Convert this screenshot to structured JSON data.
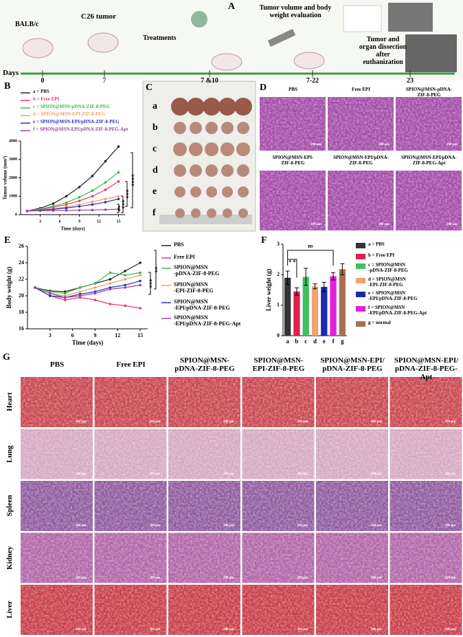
{
  "panel_a": {
    "letter": "A",
    "mouse_strain": "BALB/c",
    "tumor": "C26 tumor",
    "treatments": "Treatments",
    "evaluation": "Tumor volume and body weight evaluation",
    "dissection": "Tumor and organ dissection after euthanization",
    "timeline": {
      "label": "Days",
      "ticks": [
        "0",
        "7",
        "7 &10",
        "7-22",
        "23"
      ]
    }
  },
  "chart_data": [
    {
      "type": "line",
      "panel": "B",
      "xlabel": "Time (days)",
      "ylabel": "Tumor volume (mm³)",
      "x": [
        1,
        3,
        5,
        7,
        9,
        11,
        13,
        15
      ],
      "xlim": [
        0,
        16
      ],
      "ylim": [
        0,
        4000
      ],
      "xticks": [
        3,
        6,
        9,
        12,
        15
      ],
      "yticks": [
        0,
        1000,
        2000,
        3000,
        4000
      ],
      "series": [
        {
          "name": "a = PBS",
          "color": "#222222",
          "values": [
            200,
            350,
            600,
            1000,
            1500,
            2100,
            2900,
            3700
          ]
        },
        {
          "name": "b = Free EPI",
          "color": "#e8356a",
          "values": [
            200,
            280,
            400,
            550,
            750,
            1000,
            1350,
            1800
          ]
        },
        {
          "name": "c = SPION@MSN-pDNA-ZIF-8-PEG",
          "color": "#3cb84a",
          "values": [
            200,
            300,
            450,
            650,
            950,
            1300,
            1750,
            2300
          ]
        },
        {
          "name": "d = SPION@MSN-EPI-ZIF-8-PEG",
          "color": "#f0a060",
          "values": [
            200,
            250,
            320,
            420,
            550,
            700,
            850,
            1000
          ]
        },
        {
          "name": "e = SPION@MSN-EPI/pDNA-ZIF-8-PEG",
          "color": "#2030c0",
          "values": [
            200,
            230,
            290,
            360,
            450,
            550,
            680,
            850
          ]
        },
        {
          "name": "f = SPION@MSN-EPI/pDNA-ZIF-8-PEG-Apt",
          "color": "#a040a0",
          "values": [
            200,
            210,
            220,
            230,
            240,
            250,
            270,
            300
          ]
        }
      ],
      "annotations": [
        "****",
        "***",
        "***",
        "**"
      ]
    },
    {
      "type": "line",
      "panel": "E",
      "xlabel": "Time (days)",
      "ylabel": "Body weight (g)",
      "x": [
        1,
        3,
        5,
        7,
        9,
        11,
        13,
        15
      ],
      "xlim": [
        0,
        16
      ],
      "ylim": [
        16,
        26
      ],
      "xticks": [
        3,
        6,
        9,
        12,
        15
      ],
      "yticks": [
        16,
        18,
        20,
        22,
        24,
        26
      ],
      "series": [
        {
          "name": "PBS",
          "color": "#222222",
          "values": [
            21,
            20.6,
            20.5,
            21,
            21.5,
            22,
            23,
            24
          ]
        },
        {
          "name": "Free EPI",
          "color": "#e8356a",
          "values": [
            21,
            20,
            19.5,
            19.8,
            19.5,
            19,
            18.8,
            18.5
          ]
        },
        {
          "name": "SPION@MSN\n-pDNA-ZIF-8-PEG",
          "color": "#3cb84a",
          "values": [
            21,
            20.5,
            20.3,
            21,
            21.5,
            22.8,
            22.5,
            22.8
          ]
        },
        {
          "name": "SPION@MSN\n-EPI-ZIF-8-PEG",
          "color": "#f0a060",
          "values": [
            21,
            20.3,
            20,
            20.5,
            21,
            21.5,
            22,
            22.5
          ]
        },
        {
          "name": "SPION@MSN\n-EPI/pDNA-ZIF-8-PEG",
          "color": "#2030c0",
          "values": [
            21,
            20,
            19.8,
            20.2,
            20.5,
            21,
            21.3,
            21.8
          ]
        },
        {
          "name": "SPION@MSN\n-EPI/pDNA-ZIF-8-PEG-Apt",
          "color": "#a040a0",
          "values": [
            21,
            20.3,
            19.8,
            20,
            20.3,
            20.8,
            21,
            21.3
          ]
        }
      ],
      "annotations": [
        "**",
        "***"
      ]
    },
    {
      "type": "bar",
      "panel": "F",
      "ylabel": "Liver weight (g)",
      "categories": [
        "a",
        "b",
        "c",
        "d",
        "e",
        "f",
        "g"
      ],
      "values": [
        1.9,
        1.45,
        1.93,
        1.62,
        1.6,
        1.95,
        2.18
      ],
      "errors": [
        0.22,
        0.12,
        0.28,
        0.08,
        0.15,
        0.12,
        0.18
      ],
      "colors": [
        "#333333",
        "#e0204a",
        "#40c060",
        "#f4a070",
        "#1a2ab0",
        "#e020e0",
        "#a87050"
      ],
      "ylim": [
        0,
        3
      ],
      "yticks": [
        0,
        1,
        2,
        3
      ],
      "legend": [
        "a = PBS",
        "b = Free EPI",
        "c = SPION@MSN\n-pDNA-ZIF-8-PEG",
        "d = SPION@MSN\n-EPI-ZIF-8-PEG",
        "e = SPION@MSN\n-EPI/pDNA-ZIF-8-PEG",
        "f = SPION@MSN\n-EPI/pDNA-ZIF-8-PEG-Apt",
        "g = normal"
      ],
      "annotations": [
        "* *",
        "ns"
      ]
    }
  ],
  "panel_c": {
    "letter": "C",
    "rows": [
      "a",
      "b",
      "c",
      "d",
      "e",
      "f"
    ]
  },
  "panel_d": {
    "letter": "D",
    "titles": [
      "PBS",
      "Free EPI",
      "SPION@MSN-pDNA-\nZIF-8-PEG",
      "SPION@MSN-EPI-\nZIF-8-PEG",
      "SPION@MSN-EPI/pDNA-\nZIF-8-PEG",
      "SPION@MSN-EPI/pDNA-\nZIF-8-PEG-Apt"
    ],
    "scale": "200 μm"
  },
  "panel_g": {
    "letter": "G",
    "columns": [
      "PBS",
      "Free EPI",
      "SPION@MSN-\npDNA-ZIF-8-PEG",
      "SPION@MSN-\nEPI-ZIF-8-PEG",
      "SPION@MSN-EPI/\npDNA-ZIF-8-PEG",
      "SPION@MSN-EPI/\npDNA-ZIF-8-PEG-Apt"
    ],
    "rows": [
      "Heart",
      "Lung",
      "Spleen",
      "Kidney",
      "Liver"
    ],
    "scale": "200 μm"
  }
}
